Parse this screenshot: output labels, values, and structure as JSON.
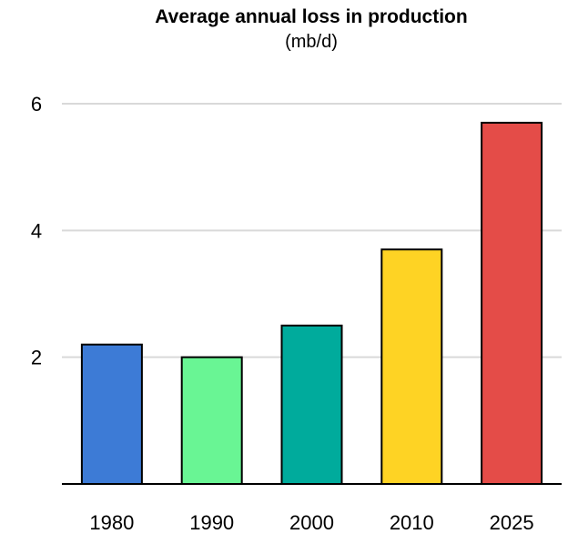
{
  "chart_data": {
    "type": "bar",
    "title": "Average annual loss in production",
    "subtitle": "(mb/d)",
    "xlabel": "",
    "ylabel": "",
    "categories": [
      "1980",
      "1990",
      "2000",
      "2010",
      "2025"
    ],
    "values": [
      2.2,
      2.0,
      2.5,
      3.7,
      5.7
    ],
    "colors": [
      "#3d7bd6",
      "#69f594",
      "#00ab9c",
      "#fed324",
      "#e44c48"
    ],
    "ylim": [
      0,
      6
    ],
    "yticks": [
      2,
      4,
      6
    ],
    "grid": true,
    "legend": "none"
  }
}
